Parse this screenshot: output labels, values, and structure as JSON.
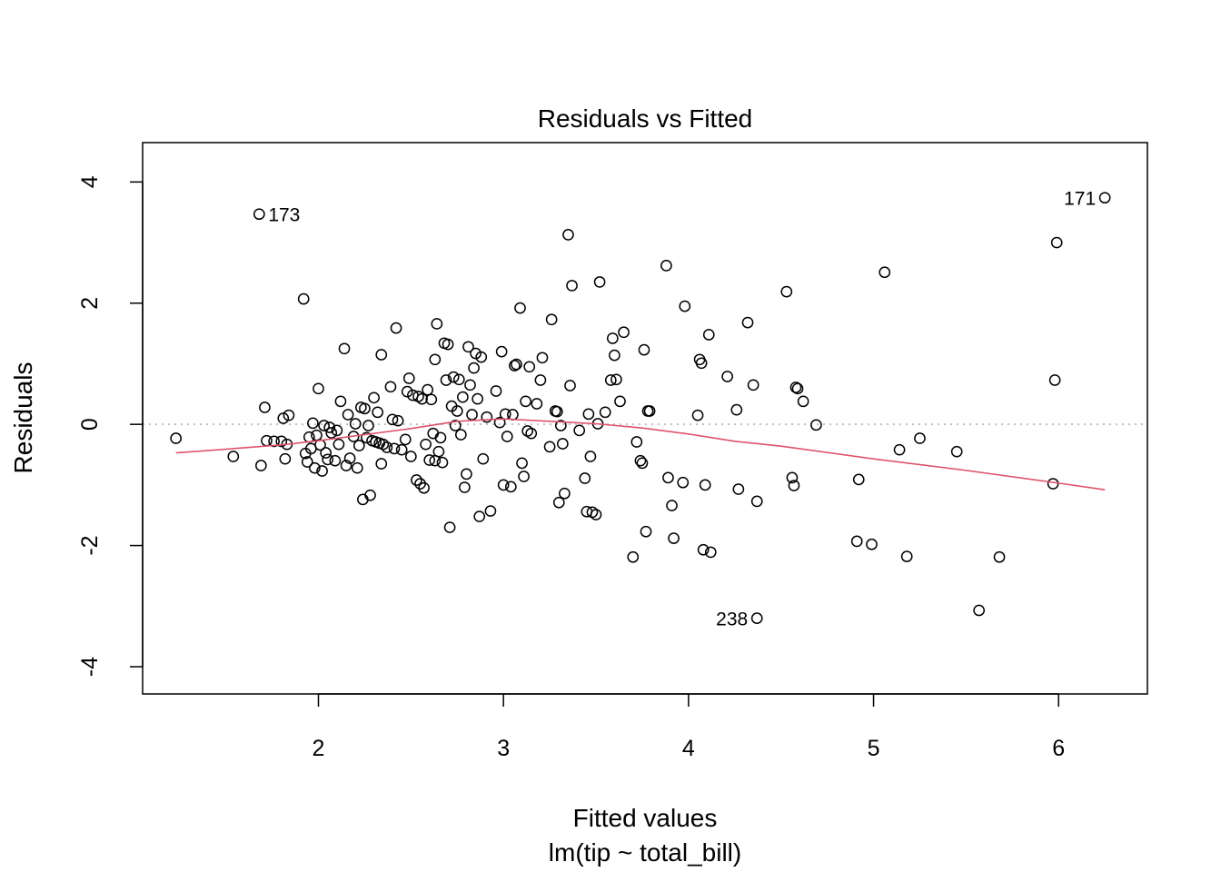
{
  "chart_data": {
    "type": "scatter",
    "title": "Residuals vs Fitted",
    "xlabel": "Fitted values",
    "subtitle": "lm(tip ~ total_bill)",
    "ylabel": "Residuals",
    "xlim": [
      1.05,
      6.48
    ],
    "ylim": [
      -4.45,
      4.65
    ],
    "xticks": [
      2,
      3,
      4,
      5,
      6
    ],
    "yticks": [
      -4,
      -2,
      0,
      2,
      4
    ],
    "reference_line_y": 0,
    "grid": false,
    "colors": {
      "points": "#000000",
      "smoother": "#DF536B",
      "reference": "#BEBEBE"
    },
    "labeled_points": [
      {
        "label": "173",
        "x": 1.68,
        "y": 3.47
      },
      {
        "label": "171",
        "x": 6.25,
        "y": 3.74
      },
      {
        "label": "238",
        "x": 4.37,
        "y": -3.2
      }
    ],
    "points": [
      [
        1.68,
        3.47
      ],
      [
        6.25,
        3.74
      ],
      [
        4.37,
        -3.2
      ],
      [
        1.23,
        -0.23
      ],
      [
        1.54,
        -0.53
      ],
      [
        1.69,
        -0.68
      ],
      [
        1.71,
        0.28
      ],
      [
        1.72,
        -0.27
      ],
      [
        1.76,
        -0.28
      ],
      [
        1.8,
        -0.28
      ],
      [
        1.81,
        0.1
      ],
      [
        1.82,
        -0.57
      ],
      [
        1.83,
        -0.33
      ],
      [
        1.84,
        0.15
      ],
      [
        1.92,
        2.07
      ],
      [
        1.93,
        -0.48
      ],
      [
        1.94,
        -0.62
      ],
      [
        1.95,
        -0.21
      ],
      [
        1.96,
        -0.4
      ],
      [
        1.97,
        0.02
      ],
      [
        1.98,
        -0.72
      ],
      [
        1.99,
        -0.18
      ],
      [
        2.0,
        0.59
      ],
      [
        2.01,
        -0.34
      ],
      [
        2.02,
        -0.77
      ],
      [
        2.03,
        -0.02
      ],
      [
        2.04,
        -0.47
      ],
      [
        2.05,
        -0.58
      ],
      [
        2.06,
        -0.05
      ],
      [
        2.07,
        -0.14
      ],
      [
        2.09,
        -0.6
      ],
      [
        2.1,
        -0.1
      ],
      [
        2.11,
        -0.33
      ],
      [
        2.12,
        0.38
      ],
      [
        2.14,
        1.25
      ],
      [
        2.15,
        -0.68
      ],
      [
        2.16,
        0.16
      ],
      [
        2.17,
        -0.56
      ],
      [
        2.19,
        -0.2
      ],
      [
        2.2,
        0.01
      ],
      [
        2.21,
        -0.72
      ],
      [
        2.22,
        -0.35
      ],
      [
        2.23,
        0.28
      ],
      [
        2.24,
        -1.24
      ],
      [
        2.25,
        0.26
      ],
      [
        2.26,
        -0.22
      ],
      [
        2.27,
        -0.02
      ],
      [
        2.28,
        -1.17
      ],
      [
        2.29,
        -0.27
      ],
      [
        2.3,
        0.44
      ],
      [
        2.31,
        -0.29
      ],
      [
        2.32,
        0.2
      ],
      [
        2.33,
        -0.31
      ],
      [
        2.34,
        1.15
      ],
      [
        2.34,
        -0.65
      ],
      [
        2.35,
        -0.33
      ],
      [
        2.37,
        -0.38
      ],
      [
        2.39,
        0.62
      ],
      [
        2.4,
        0.08
      ],
      [
        2.41,
        -0.4
      ],
      [
        2.42,
        1.59
      ],
      [
        2.43,
        0.06
      ],
      [
        2.45,
        -0.42
      ],
      [
        2.47,
        -0.25
      ],
      [
        2.48,
        0.54
      ],
      [
        2.49,
        0.76
      ],
      [
        2.5,
        -0.53
      ],
      [
        2.51,
        0.48
      ],
      [
        2.53,
        -0.92
      ],
      [
        2.54,
        0.46
      ],
      [
        2.55,
        -0.98
      ],
      [
        2.56,
        0.42
      ],
      [
        2.57,
        -1.05
      ],
      [
        2.58,
        -0.33
      ],
      [
        2.59,
        0.57
      ],
      [
        2.6,
        -0.59
      ],
      [
        2.61,
        0.41
      ],
      [
        2.62,
        -0.15
      ],
      [
        2.63,
        1.07
      ],
      [
        2.63,
        -0.6
      ],
      [
        2.64,
        1.66
      ],
      [
        2.65,
        -0.45
      ],
      [
        2.66,
        -0.22
      ],
      [
        2.67,
        -0.63
      ],
      [
        2.68,
        1.34
      ],
      [
        2.69,
        0.73
      ],
      [
        2.7,
        1.32
      ],
      [
        2.71,
        -1.7
      ],
      [
        2.72,
        0.3
      ],
      [
        2.73,
        0.78
      ],
      [
        2.74,
        -0.02
      ],
      [
        2.75,
        0.22
      ],
      [
        2.76,
        0.74
      ],
      [
        2.77,
        -0.17
      ],
      [
        2.78,
        0.45
      ],
      [
        2.79,
        -1.04
      ],
      [
        2.8,
        -0.82
      ],
      [
        2.81,
        1.28
      ],
      [
        2.82,
        0.65
      ],
      [
        2.83,
        0.16
      ],
      [
        2.84,
        0.93
      ],
      [
        2.85,
        1.17
      ],
      [
        2.86,
        0.42
      ],
      [
        2.87,
        -1.52
      ],
      [
        2.88,
        1.11
      ],
      [
        2.89,
        -0.57
      ],
      [
        2.91,
        0.12
      ],
      [
        2.93,
        -1.43
      ],
      [
        2.96,
        0.55
      ],
      [
        2.98,
        0.03
      ],
      [
        2.99,
        1.2
      ],
      [
        3.0,
        -1.0
      ],
      [
        3.01,
        0.17
      ],
      [
        3.02,
        -0.2
      ],
      [
        3.04,
        -1.03
      ],
      [
        3.05,
        0.16
      ],
      [
        3.06,
        0.97
      ],
      [
        3.07,
        0.99
      ],
      [
        3.09,
        1.92
      ],
      [
        3.1,
        -0.64
      ],
      [
        3.11,
        -0.86
      ],
      [
        3.12,
        0.38
      ],
      [
        3.13,
        -0.11
      ],
      [
        3.14,
        0.95
      ],
      [
        3.15,
        -0.15
      ],
      [
        3.18,
        0.34
      ],
      [
        3.2,
        0.73
      ],
      [
        3.21,
        1.1
      ],
      [
        3.25,
        -0.37
      ],
      [
        3.26,
        1.73
      ],
      [
        3.28,
        0.22
      ],
      [
        3.29,
        0.21
      ],
      [
        3.3,
        -1.29
      ],
      [
        3.31,
        -0.02
      ],
      [
        3.32,
        -0.32
      ],
      [
        3.33,
        -1.14
      ],
      [
        3.35,
        3.13
      ],
      [
        3.36,
        0.64
      ],
      [
        3.37,
        2.29
      ],
      [
        3.41,
        -0.1
      ],
      [
        3.44,
        -0.89
      ],
      [
        3.45,
        -1.44
      ],
      [
        3.46,
        0.17
      ],
      [
        3.47,
        -0.53
      ],
      [
        3.48,
        -1.45
      ],
      [
        3.5,
        -1.49
      ],
      [
        3.51,
        0.01
      ],
      [
        3.52,
        2.35
      ],
      [
        3.55,
        0.2
      ],
      [
        3.58,
        0.73
      ],
      [
        3.59,
        1.42
      ],
      [
        3.6,
        1.14
      ],
      [
        3.61,
        0.74
      ],
      [
        3.63,
        0.38
      ],
      [
        3.65,
        1.52
      ],
      [
        3.7,
        -2.19
      ],
      [
        3.72,
        -0.29
      ],
      [
        3.74,
        -0.6
      ],
      [
        3.75,
        -0.64
      ],
      [
        3.76,
        1.23
      ],
      [
        3.77,
        -1.77
      ],
      [
        3.78,
        0.22
      ],
      [
        3.79,
        0.22
      ],
      [
        3.88,
        2.62
      ],
      [
        3.89,
        -0.88
      ],
      [
        3.91,
        -1.34
      ],
      [
        3.92,
        -1.88
      ],
      [
        3.97,
        -0.96
      ],
      [
        3.98,
        1.95
      ],
      [
        4.05,
        0.15
      ],
      [
        4.06,
        1.07
      ],
      [
        4.07,
        1.01
      ],
      [
        4.08,
        -2.07
      ],
      [
        4.09,
        -1.0
      ],
      [
        4.11,
        1.48
      ],
      [
        4.12,
        -2.11
      ],
      [
        4.21,
        0.79
      ],
      [
        4.26,
        0.24
      ],
      [
        4.27,
        -1.07
      ],
      [
        4.32,
        1.68
      ],
      [
        4.35,
        0.65
      ],
      [
        4.37,
        -1.27
      ],
      [
        4.53,
        2.19
      ],
      [
        4.56,
        -0.88
      ],
      [
        4.57,
        -1.01
      ],
      [
        4.58,
        0.61
      ],
      [
        4.59,
        0.59
      ],
      [
        4.62,
        0.38
      ],
      [
        4.69,
        -0.01
      ],
      [
        4.91,
        -1.93
      ],
      [
        4.92,
        -0.91
      ],
      [
        4.99,
        -1.98
      ],
      [
        5.06,
        2.51
      ],
      [
        5.14,
        -0.42
      ],
      [
        5.18,
        -2.18
      ],
      [
        5.25,
        -0.23
      ],
      [
        5.45,
        -0.45
      ],
      [
        5.57,
        -3.07
      ],
      [
        5.68,
        -2.19
      ],
      [
        5.97,
        -0.98
      ],
      [
        5.98,
        0.73
      ],
      [
        5.99,
        3.0
      ]
    ],
    "smoother": [
      [
        1.23,
        -0.47
      ],
      [
        1.5,
        -0.41
      ],
      [
        1.8,
        -0.34
      ],
      [
        2.0,
        -0.27
      ],
      [
        2.25,
        -0.17
      ],
      [
        2.5,
        -0.07
      ],
      [
        2.75,
        0.05
      ],
      [
        3.0,
        0.09
      ],
      [
        3.25,
        0.05
      ],
      [
        3.5,
        0.01
      ],
      [
        3.75,
        -0.06
      ],
      [
        4.0,
        -0.16
      ],
      [
        4.25,
        -0.28
      ],
      [
        4.5,
        -0.36
      ],
      [
        5.0,
        -0.57
      ],
      [
        5.5,
        -0.76
      ],
      [
        6.0,
        -0.97
      ],
      [
        6.25,
        -1.08
      ]
    ]
  }
}
